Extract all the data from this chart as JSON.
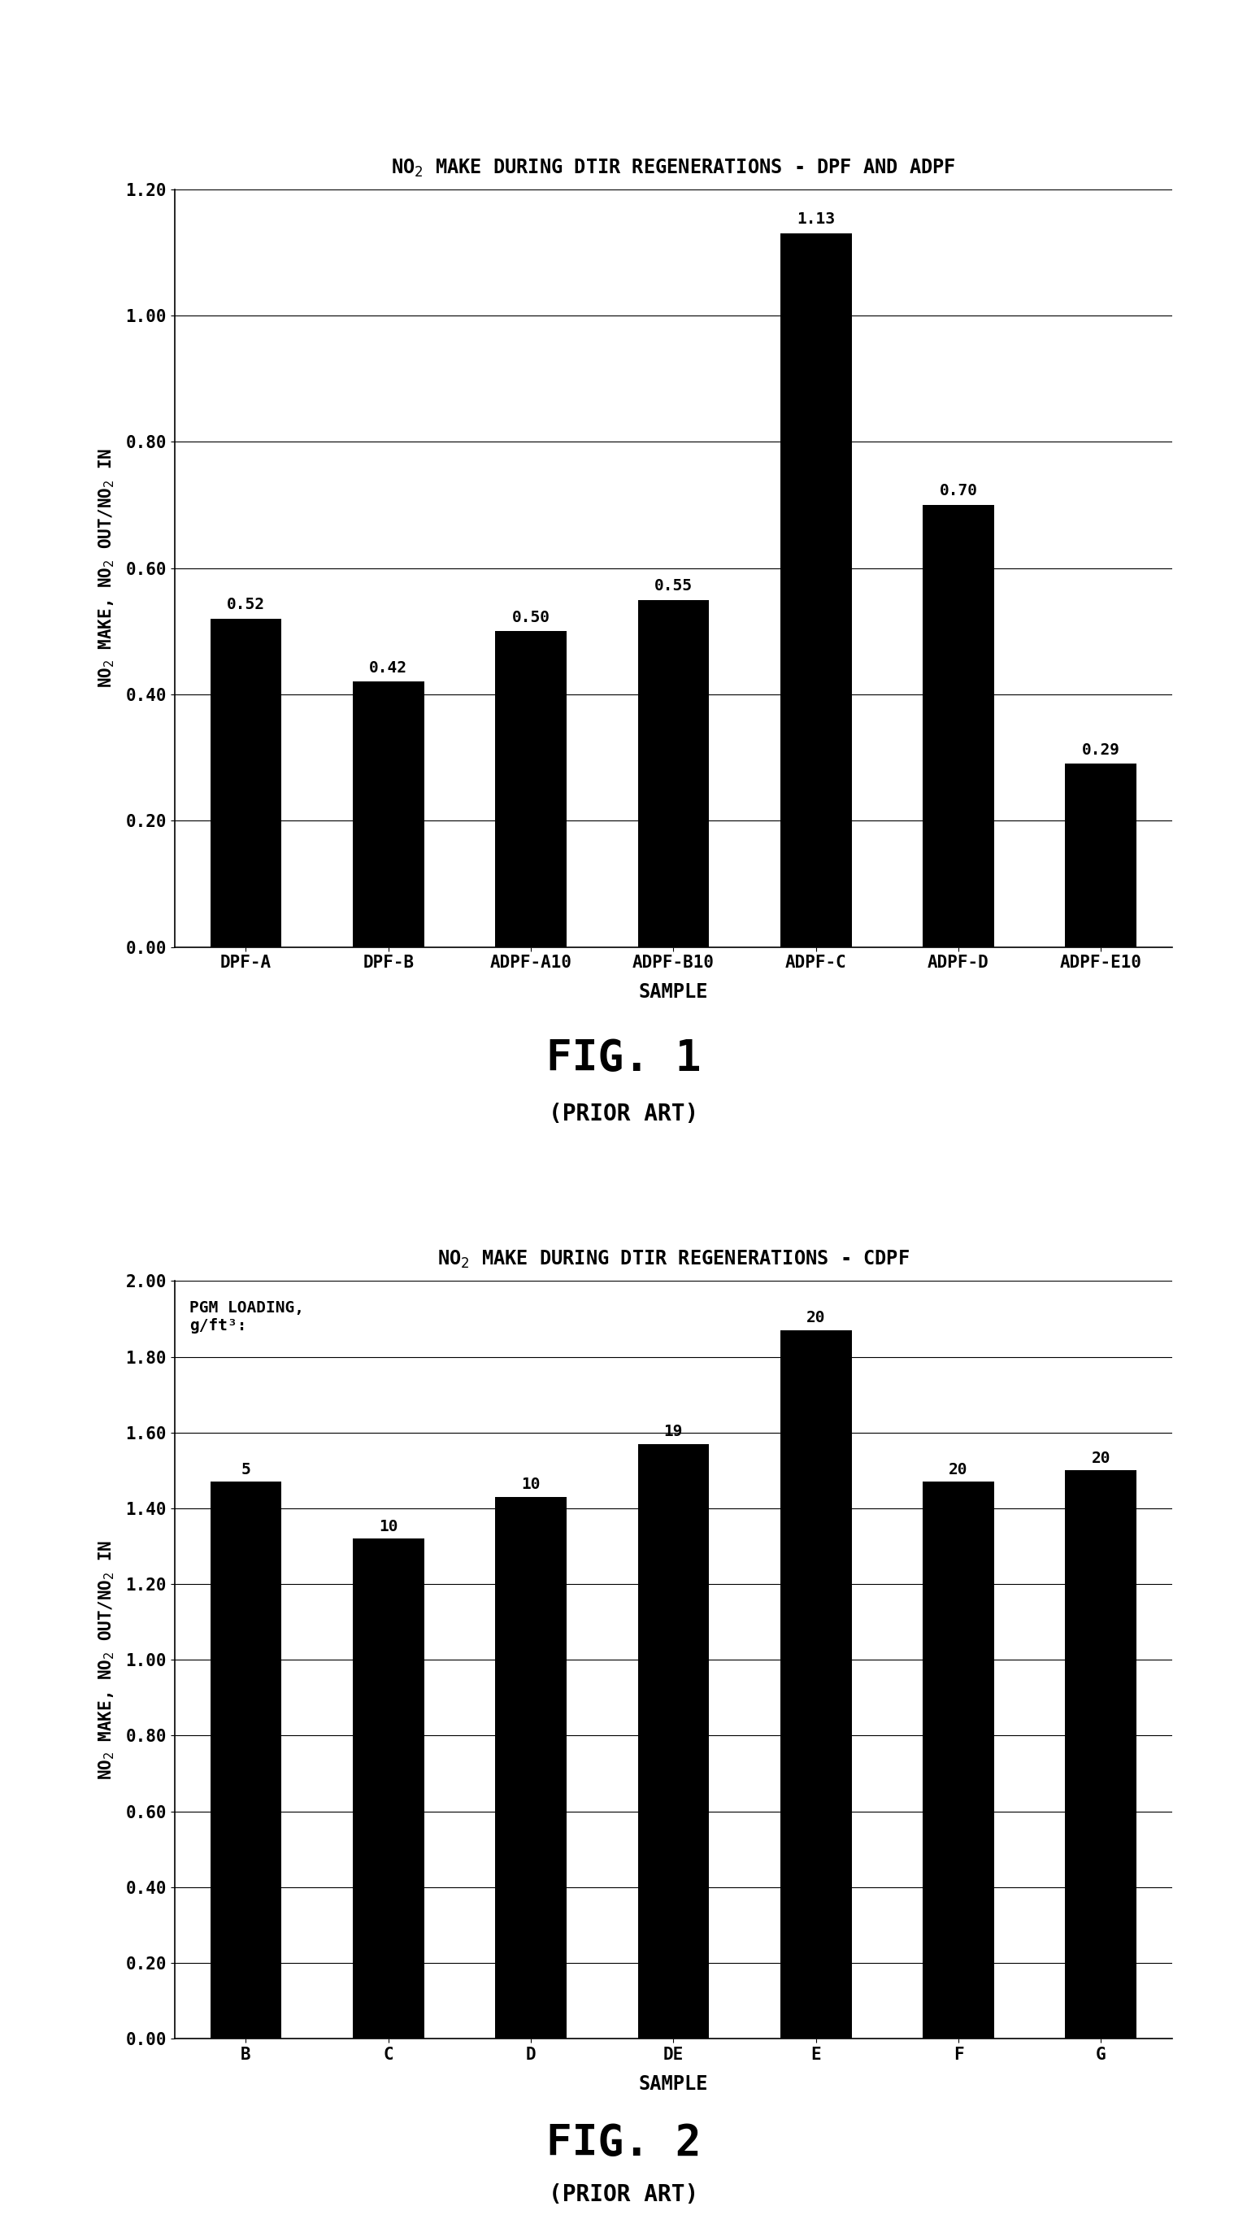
{
  "fig1": {
    "title": "NO$_2$ MAKE DURING DTIR REGENERATIONS - DPF AND ADPF",
    "categories": [
      "DPF-A",
      "DPF-B",
      "ADPF-A10",
      "ADPF-B10",
      "ADPF-C",
      "ADPF-D",
      "ADPF-E10"
    ],
    "values": [
      0.52,
      0.42,
      0.5,
      0.55,
      1.13,
      0.7,
      0.29
    ],
    "ylabel": "NO$_2$ MAKE, NO$_2$ OUT/NO$_2$ IN",
    "xlabel": "SAMPLE",
    "ylim": [
      0.0,
      1.2
    ],
    "yticks": [
      0.0,
      0.2,
      0.4,
      0.6,
      0.8,
      1.0,
      1.2
    ],
    "bar_color": "#000000",
    "fig_label": "FIG. 1",
    "fig_sublabel": "(PRIOR ART)"
  },
  "fig2": {
    "title": "NO$_2$ MAKE DURING DTIR REGENERATIONS - CDPF",
    "categories": [
      "B",
      "C",
      "D",
      "DE",
      "E",
      "F",
      "G"
    ],
    "values": [
      1.47,
      1.32,
      1.43,
      1.57,
      1.87,
      1.47,
      1.5
    ],
    "pgm_values": [
      5,
      10,
      10,
      19,
      20,
      20,
      20
    ],
    "ylabel": "NO$_2$ MAKE, NO$_2$ OUT/NO$_2$ IN",
    "xlabel": "SAMPLE",
    "ylim": [
      0.0,
      2.0
    ],
    "yticks": [
      0.0,
      0.2,
      0.4,
      0.6,
      0.8,
      1.0,
      1.2,
      1.4,
      1.6,
      1.8,
      2.0
    ],
    "bar_color": "#000000",
    "annotation_line1": "PGM LOADING,",
    "annotation_line2": "g/ft³:",
    "fig_label": "FIG. 2",
    "fig_sublabel": "(PRIOR ART)"
  },
  "background_color": "#ffffff",
  "font_family": "DejaVu Sans Mono",
  "bar_width": 0.5,
  "tick_fontsize": 15,
  "title_fontsize": 17,
  "value_fontsize": 14,
  "xlabel_fontsize": 17,
  "ylabel_fontsize": 15,
  "figlabel_fontsize": 38,
  "sublabel_fontsize": 20
}
